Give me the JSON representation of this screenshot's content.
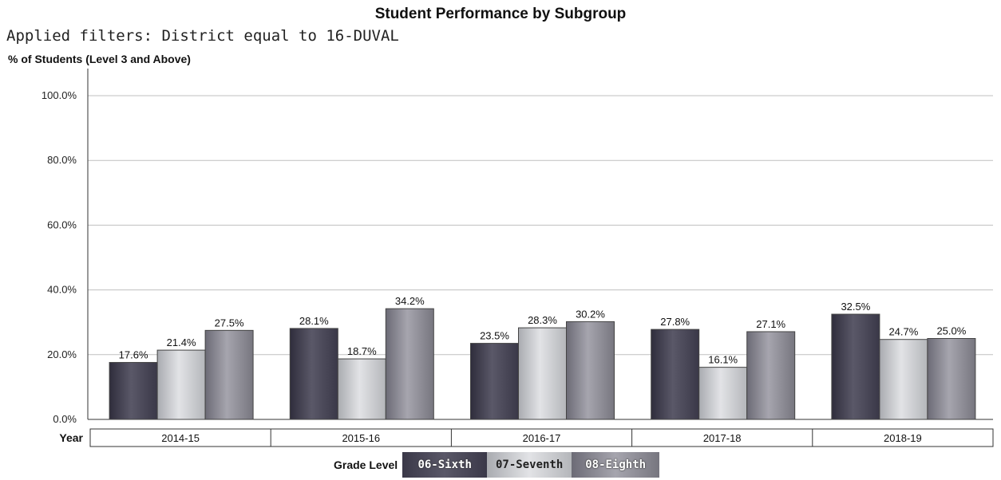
{
  "page": {
    "title": "Student Performance by Subgroup",
    "filters": "Applied filters: District equal to 16-DUVAL"
  },
  "legend": {
    "title": "Grade Level"
  },
  "chart_data": {
    "type": "bar",
    "title": "Student Performance by Subgroup",
    "ylabel": "% of Students (Level 3 and Above)",
    "xlabel": "Year",
    "categories": [
      "2014-15",
      "2015-16",
      "2016-17",
      "2017-18",
      "2018-19"
    ],
    "series": [
      {
        "name": "06-Sixth",
        "values": [
          17.6,
          28.1,
          23.5,
          27.8,
          32.5
        ],
        "labels": [
          "17.6%",
          "28.1%",
          "23.5%",
          "27.8%",
          "32.5%"
        ],
        "color": "#4a4858"
      },
      {
        "name": "07-Seventh",
        "values": [
          21.4,
          18.7,
          28.3,
          16.1,
          24.7
        ],
        "labels": [
          "21.4%",
          "18.7%",
          "28.3%",
          "16.1%",
          "24.7%"
        ],
        "color": "#c8cacd"
      },
      {
        "name": "08-Eighth",
        "values": [
          27.5,
          34.2,
          30.2,
          27.1,
          25.0
        ],
        "labels": [
          "27.5%",
          "34.2%",
          "30.2%",
          "27.1%",
          "25.0%"
        ],
        "color": "#8e8d96"
      }
    ],
    "yticks": [
      "0.0%",
      "20.0%",
      "40.0%",
      "60.0%",
      "80.0%",
      "100.0%"
    ],
    "ylim": [
      0,
      100
    ],
    "grid": true,
    "legend_position": "bottom"
  }
}
